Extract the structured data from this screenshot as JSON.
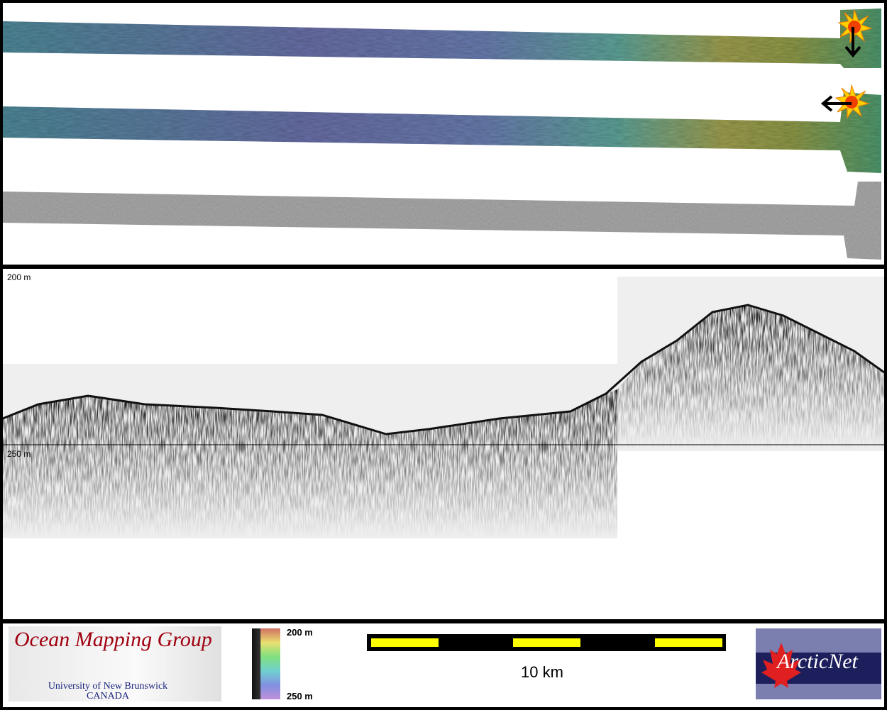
{
  "swath_panel": {
    "sun_icons": [
      "sun-illumination-north-icon",
      "sun-illumination-east-icon"
    ],
    "arrow_directions": [
      "down",
      "left"
    ]
  },
  "profile_panel": {
    "depth_top_label": "200 m",
    "depth_bottom_label": "250 m"
  },
  "footer": {
    "omg_logo": {
      "title": "Ocean Mapping Group",
      "subtitle": "University of New Brunswick",
      "country": "CANADA"
    },
    "colorbar": {
      "top_label": "200 m",
      "bottom_label": "250 m"
    },
    "scale_bar": {
      "label": "10 km",
      "colors": [
        "#ffff00",
        "#000000"
      ]
    },
    "arcticnet_logo": {
      "text": "ArcticNet"
    }
  }
}
